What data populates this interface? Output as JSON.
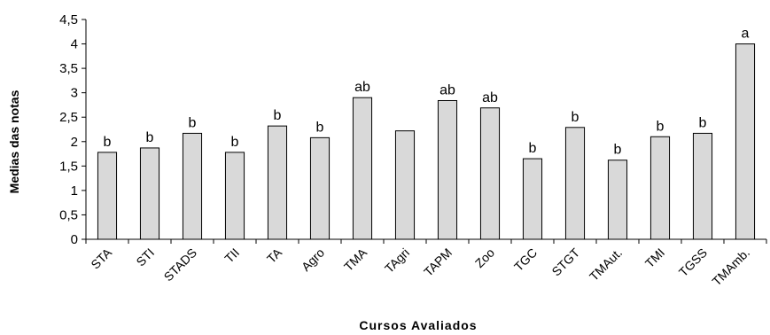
{
  "chart_data": {
    "type": "bar",
    "title": "",
    "xlabel": "Cursos Avaliados",
    "ylabel": "Medias das notas",
    "ylim": [
      0,
      4.5
    ],
    "yticks": [
      "0",
      "0,5",
      "1",
      "1,5",
      "2",
      "2,5",
      "3",
      "3,5",
      "4",
      "4,5"
    ],
    "grid": false,
    "legend": "none",
    "categories": [
      "STA",
      "STI",
      "STADS",
      "TII",
      "TA",
      "Agro",
      "TMA",
      "TAgri",
      "TAPM",
      "Zoo",
      "TGC",
      "STGT",
      "TMAut.",
      "TMI",
      "TGSS",
      "TMAmb."
    ],
    "values": [
      1.78,
      1.87,
      2.17,
      1.78,
      2.32,
      2.08,
      2.9,
      2.22,
      2.84,
      2.69,
      1.65,
      2.29,
      1.62,
      2.1,
      2.17,
      4.0
    ],
    "data_labels": [
      "b",
      "b",
      "b",
      "b",
      "b",
      "b",
      "ab",
      "",
      "ab",
      "ab",
      "b",
      "b",
      "b",
      "b",
      "b",
      "a"
    ],
    "bar_fill": "#d9d9d9",
    "bar_stroke": "#000000"
  }
}
